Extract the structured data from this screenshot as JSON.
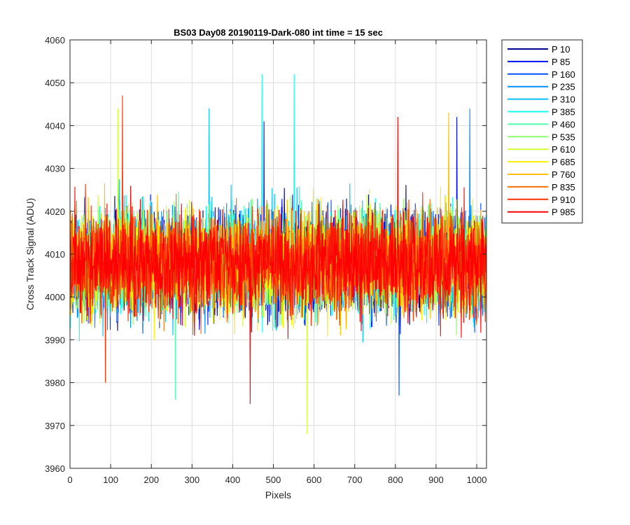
{
  "chart_data": {
    "type": "line",
    "title": "BS03 Day08 20190119-Dark-080 int time = 15 sec",
    "xlabel": "Pixels",
    "ylabel": "Cross Track Signal (ADU)",
    "xlim": [
      0,
      1024
    ],
    "ylim": [
      3960,
      4060
    ],
    "xticks": [
      0,
      100,
      200,
      300,
      400,
      500,
      600,
      700,
      800,
      900,
      1000
    ],
    "yticks": [
      3960,
      3970,
      3980,
      3990,
      4000,
      4010,
      4020,
      4030,
      4040,
      4050,
      4060
    ],
    "grid": true,
    "legend_position": "outside-top-right",
    "noise_mean": 4008,
    "noise_sd": 8,
    "series": [
      {
        "name": "P 10",
        "color": "#00008f"
      },
      {
        "name": "P 85",
        "color": "#0010ff"
      },
      {
        "name": "P 160",
        "color": "#0050ff"
      },
      {
        "name": "P 235",
        "color": "#0090ff"
      },
      {
        "name": "P 310",
        "color": "#00c0ff"
      },
      {
        "name": "P 385",
        "color": "#10ffef"
      },
      {
        "name": "P 460",
        "color": "#50ffaf"
      },
      {
        "name": "P 535",
        "color": "#90ff6f"
      },
      {
        "name": "P 610",
        "color": "#cfff30"
      },
      {
        "name": "P 685",
        "color": "#ffef00"
      },
      {
        "name": "P 760",
        "color": "#ffbf00"
      },
      {
        "name": "P 835",
        "color": "#ff7000"
      },
      {
        "name": "P 910",
        "color": "#ff3000"
      },
      {
        "name": "P 985",
        "color": "#ff0000"
      }
    ],
    "spikes": [
      {
        "series": 5,
        "x": 471,
        "y": 4052
      },
      {
        "series": 5,
        "x": 550,
        "y": 4052
      },
      {
        "series": 12,
        "x": 128,
        "y": 4047
      },
      {
        "series": 4,
        "x": 341,
        "y": 4044
      },
      {
        "series": 8,
        "x": 117,
        "y": 4044
      },
      {
        "series": 3,
        "x": 982,
        "y": 4044
      },
      {
        "series": 10,
        "x": 930,
        "y": 4043
      },
      {
        "series": 1,
        "x": 950,
        "y": 4042
      },
      {
        "series": 13,
        "x": 805,
        "y": 4042
      },
      {
        "series": 1,
        "x": 476,
        "y": 4041
      },
      {
        "series": 13,
        "x": 442,
        "y": 3975
      },
      {
        "series": 8,
        "x": 582,
        "y": 3968
      },
      {
        "series": 2,
        "x": 808,
        "y": 3977
      },
      {
        "series": 6,
        "x": 258,
        "y": 3976
      },
      {
        "series": 12,
        "x": 86,
        "y": 3980
      }
    ]
  }
}
